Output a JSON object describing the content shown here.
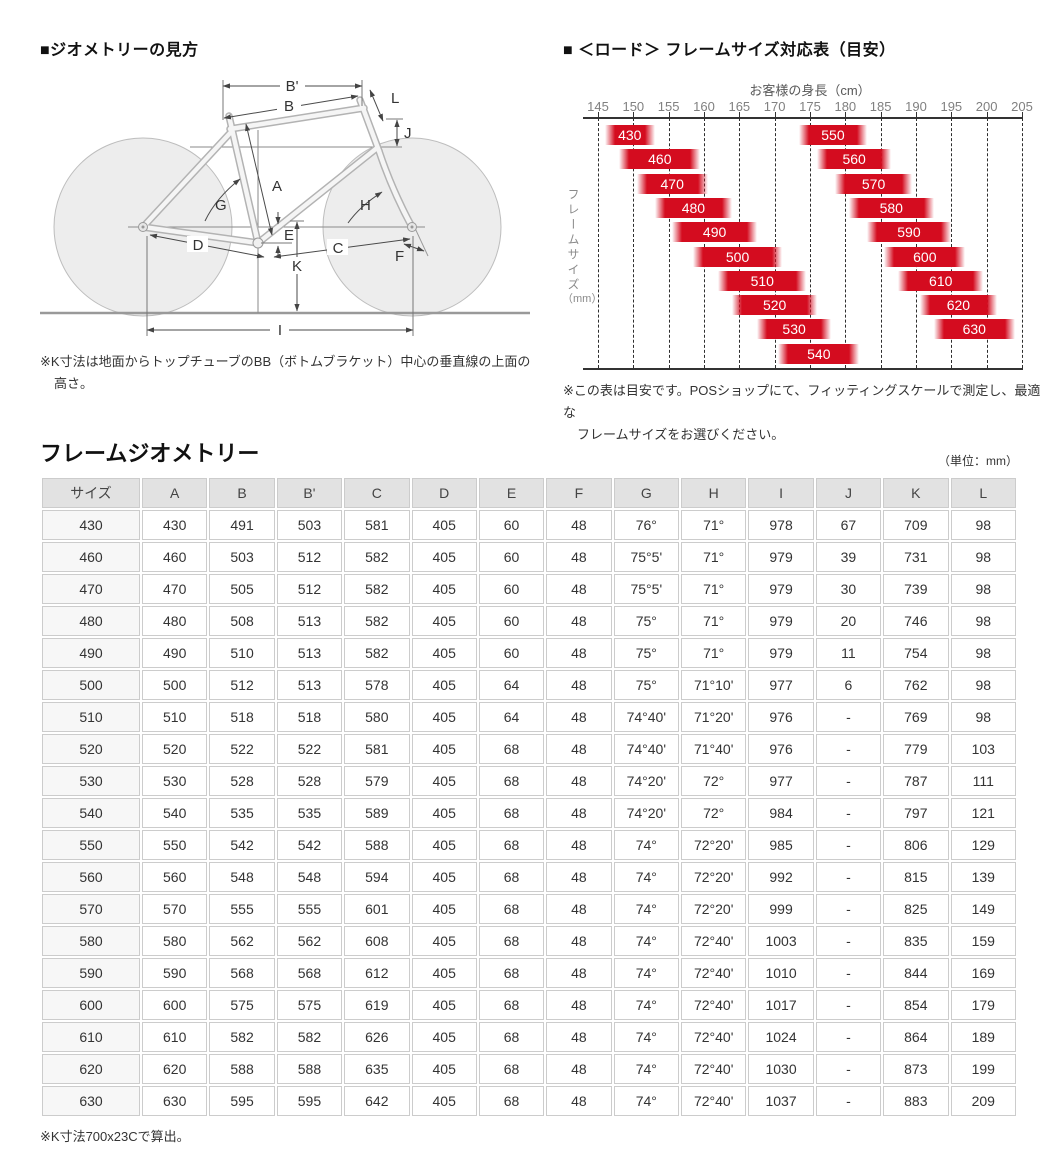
{
  "sections": {
    "diagram": {
      "title": "■ジオメトリーの見方",
      "note_lines": [
        "※K寸法は地面からトップチューブのBB（ボトムブラケット）中心の垂直線の上面の",
        "高さ。"
      ],
      "labels": {
        "bp": "B'",
        "b": "B",
        "l": "L",
        "j": "J",
        "a": "A",
        "g": "G",
        "h": "H",
        "e": "E",
        "d": "D",
        "c": "C",
        "f": "F",
        "k": "K",
        "i": "I"
      }
    },
    "size_chart": {
      "title": "■ ＜ロード＞ フレームサイズ対応表（目安）",
      "note_lines": [
        "※この表は目安です。POSショップにて、フィッティングスケールで測定し、最適な",
        "フレームサイズをお選びください。"
      ]
    },
    "geometry_table": {
      "title": "フレームジオメトリー",
      "unit": "（単位：mm）",
      "footnote": "※K寸法700x23Cで算出。"
    }
  },
  "chart_data": {
    "type": "bar",
    "title": "お客様の身長（cm）",
    "ylabel": "フレームサイズ",
    "ylabel_unit": "（mm）",
    "xlabel": "",
    "xlim": [
      145,
      205
    ],
    "x_ticks": [
      145,
      150,
      155,
      160,
      165,
      170,
      175,
      180,
      185,
      190,
      195,
      200,
      205
    ],
    "bar_color": "#d40c1f",
    "grid": true,
    "bars": [
      {
        "label": "430",
        "row": 0,
        "from": 146.0,
        "to": 153.0
      },
      {
        "label": "460",
        "row": 1,
        "from": 148.0,
        "to": 159.5
      },
      {
        "label": "470",
        "row": 2,
        "from": 150.5,
        "to": 160.5
      },
      {
        "label": "480",
        "row": 3,
        "from": 153.0,
        "to": 164.0
      },
      {
        "label": "490",
        "row": 4,
        "from": 155.5,
        "to": 167.5
      },
      {
        "label": "500",
        "row": 5,
        "from": 158.5,
        "to": 171.0
      },
      {
        "label": "510",
        "row": 6,
        "from": 162.0,
        "to": 174.5
      },
      {
        "label": "520",
        "row": 7,
        "from": 164.0,
        "to": 176.0
      },
      {
        "label": "530",
        "row": 8,
        "from": 167.5,
        "to": 178.0
      },
      {
        "label": "540",
        "row": 9,
        "from": 170.5,
        "to": 182.0
      },
      {
        "label": "550",
        "row": 0,
        "from": 173.5,
        "to": 183.0
      },
      {
        "label": "560",
        "row": 1,
        "from": 176.0,
        "to": 186.5
      },
      {
        "label": "570",
        "row": 2,
        "from": 178.5,
        "to": 189.5
      },
      {
        "label": "580",
        "row": 3,
        "from": 180.5,
        "to": 192.5
      },
      {
        "label": "590",
        "row": 4,
        "from": 183.0,
        "to": 195.0
      },
      {
        "label": "600",
        "row": 5,
        "from": 185.5,
        "to": 197.0
      },
      {
        "label": "610",
        "row": 6,
        "from": 187.5,
        "to": 199.5
      },
      {
        "label": "620",
        "row": 7,
        "from": 190.5,
        "to": 201.5
      },
      {
        "label": "630",
        "row": 8,
        "from": 192.5,
        "to": 204.0
      }
    ]
  },
  "table_data": {
    "columns": [
      "サイズ",
      "A",
      "B",
      "B'",
      "C",
      "D",
      "E",
      "F",
      "G",
      "H",
      "I",
      "J",
      "K",
      "L"
    ],
    "rows": [
      [
        "430",
        "430",
        "491",
        "503",
        "581",
        "405",
        "60",
        "48",
        "76°",
        "71°",
        "978",
        "67",
        "709",
        "98"
      ],
      [
        "460",
        "460",
        "503",
        "512",
        "582",
        "405",
        "60",
        "48",
        "75°5'",
        "71°",
        "979",
        "39",
        "731",
        "98"
      ],
      [
        "470",
        "470",
        "505",
        "512",
        "582",
        "405",
        "60",
        "48",
        "75°5'",
        "71°",
        "979",
        "30",
        "739",
        "98"
      ],
      [
        "480",
        "480",
        "508",
        "513",
        "582",
        "405",
        "60",
        "48",
        "75°",
        "71°",
        "979",
        "20",
        "746",
        "98"
      ],
      [
        "490",
        "490",
        "510",
        "513",
        "582",
        "405",
        "60",
        "48",
        "75°",
        "71°",
        "979",
        "11",
        "754",
        "98"
      ],
      [
        "500",
        "500",
        "512",
        "513",
        "578",
        "405",
        "64",
        "48",
        "75°",
        "71°10'",
        "977",
        "6",
        "762",
        "98"
      ],
      [
        "510",
        "510",
        "518",
        "518",
        "580",
        "405",
        "64",
        "48",
        "74°40'",
        "71°20'",
        "976",
        "-",
        "769",
        "98"
      ],
      [
        "520",
        "520",
        "522",
        "522",
        "581",
        "405",
        "68",
        "48",
        "74°40'",
        "71°40'",
        "976",
        "-",
        "779",
        "103"
      ],
      [
        "530",
        "530",
        "528",
        "528",
        "579",
        "405",
        "68",
        "48",
        "74°20'",
        "72°",
        "977",
        "-",
        "787",
        "111"
      ],
      [
        "540",
        "540",
        "535",
        "535",
        "589",
        "405",
        "68",
        "48",
        "74°20'",
        "72°",
        "984",
        "-",
        "797",
        "121"
      ],
      [
        "550",
        "550",
        "542",
        "542",
        "588",
        "405",
        "68",
        "48",
        "74°",
        "72°20'",
        "985",
        "-",
        "806",
        "129"
      ],
      [
        "560",
        "560",
        "548",
        "548",
        "594",
        "405",
        "68",
        "48",
        "74°",
        "72°20'",
        "992",
        "-",
        "815",
        "139"
      ],
      [
        "570",
        "570",
        "555",
        "555",
        "601",
        "405",
        "68",
        "48",
        "74°",
        "72°20'",
        "999",
        "-",
        "825",
        "149"
      ],
      [
        "580",
        "580",
        "562",
        "562",
        "608",
        "405",
        "68",
        "48",
        "74°",
        "72°40'",
        "1003",
        "-",
        "835",
        "159"
      ],
      [
        "590",
        "590",
        "568",
        "568",
        "612",
        "405",
        "68",
        "48",
        "74°",
        "72°40'",
        "1010",
        "-",
        "844",
        "169"
      ],
      [
        "600",
        "600",
        "575",
        "575",
        "619",
        "405",
        "68",
        "48",
        "74°",
        "72°40'",
        "1017",
        "-",
        "854",
        "179"
      ],
      [
        "610",
        "610",
        "582",
        "582",
        "626",
        "405",
        "68",
        "48",
        "74°",
        "72°40'",
        "1024",
        "-",
        "864",
        "189"
      ],
      [
        "620",
        "620",
        "588",
        "588",
        "635",
        "405",
        "68",
        "48",
        "74°",
        "72°40'",
        "1030",
        "-",
        "873",
        "199"
      ],
      [
        "630",
        "630",
        "595",
        "595",
        "642",
        "405",
        "68",
        "48",
        "74°",
        "72°40'",
        "1037",
        "-",
        "883",
        "209"
      ]
    ]
  }
}
